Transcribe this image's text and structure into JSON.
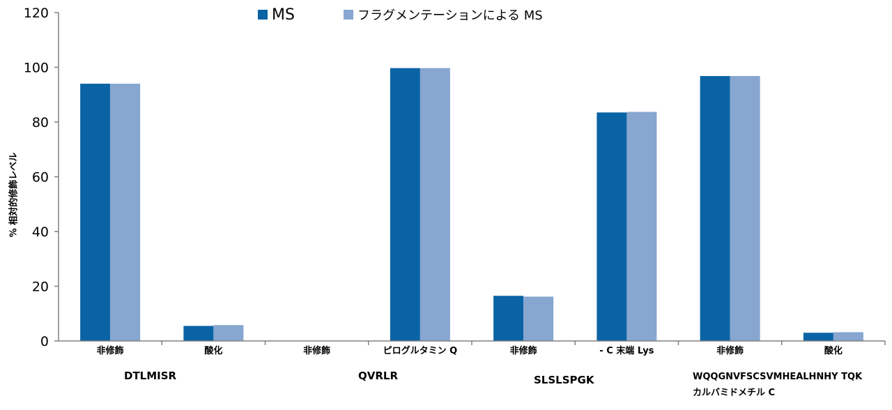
{
  "chart_data": {
    "type": "bar",
    "ylabel": "% 相対的修飾レベル",
    "ylim": [
      0,
      120
    ],
    "yticks": [
      0,
      20,
      40,
      60,
      80,
      100,
      120
    ],
    "grid": false,
    "legend_position": "top",
    "categories": [
      "非修飾",
      "酸化",
      "非修飾",
      "ピログルタミン Q",
      "非修飾",
      "- C 末端 Lys",
      "非修飾",
      "酸化"
    ],
    "groups": [
      {
        "label": "DTLMISR",
        "categories": [
          0,
          1
        ]
      },
      {
        "label": "QVRLR",
        "categories": [
          2,
          3
        ]
      },
      {
        "label": "SLSLSPGK",
        "categories": [
          4,
          5
        ]
      },
      {
        "label": "WQQGNVFSCSVMHEALHNHY TQK",
        "label_line2": "カルバミドメチル C",
        "categories": [
          6,
          7
        ]
      }
    ],
    "series": [
      {
        "name": "MS",
        "color": "#0a63a4",
        "values": [
          94,
          5.5,
          0,
          99.7,
          16.5,
          83.5,
          96.8,
          3
        ]
      },
      {
        "name": "フラグメンテーションによる MS",
        "color": "#87a6d0",
        "values": [
          94,
          5.8,
          0,
          99.7,
          16.2,
          83.7,
          96.8,
          3.2
        ]
      }
    ]
  }
}
